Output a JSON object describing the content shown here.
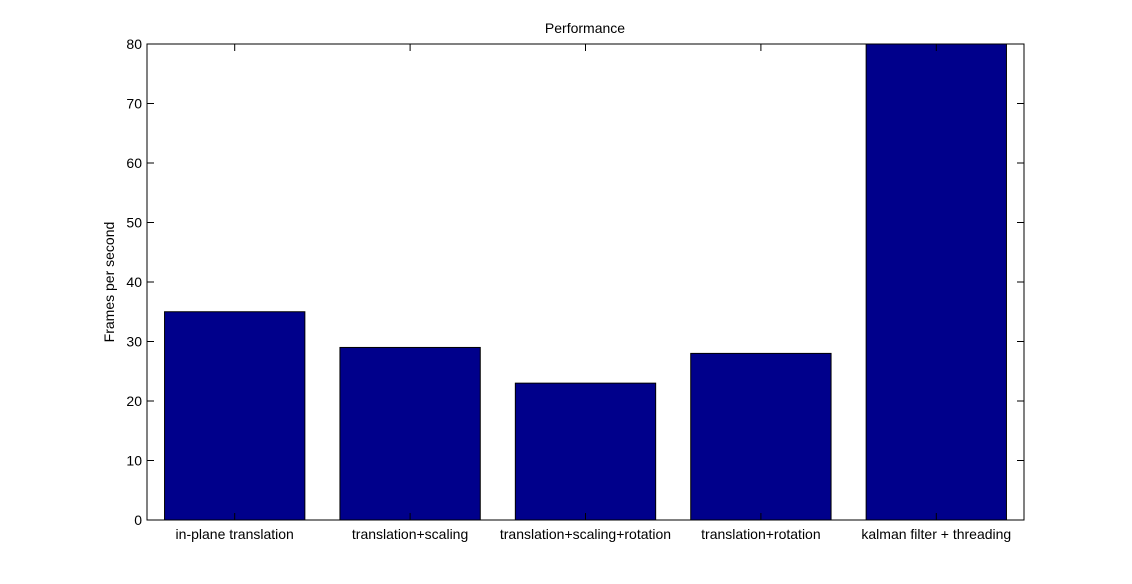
{
  "chart_data": {
    "type": "bar",
    "title": "Performance",
    "xlabel": "",
    "ylabel": "Frames per second",
    "categories": [
      "in-plane translation",
      "translation+scaling",
      "translation+scaling+rotation",
      "translation+rotation",
      "kalman filter + threading"
    ],
    "values": [
      35,
      29,
      23,
      28,
      80
    ],
    "ylim": [
      0,
      80
    ],
    "yticks": [
      0,
      10,
      20,
      30,
      40,
      50,
      60,
      70,
      80
    ],
    "grid": false,
    "bar_color": "#00008B",
    "bar_edge_color": "#000000"
  }
}
